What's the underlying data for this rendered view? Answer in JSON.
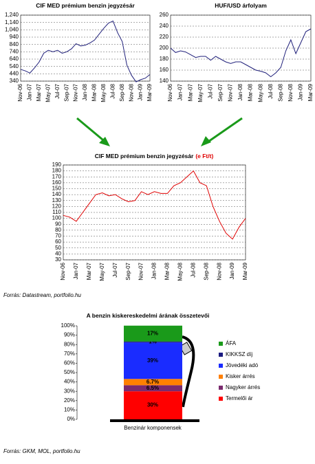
{
  "chart_data": [
    {
      "type": "line",
      "title": "CIF MED prémium benzin jegyzésár",
      "categories": [
        "Nov-06",
        null,
        "Jan-07",
        null,
        "Mar-07",
        null,
        "May-07",
        null,
        "Jul-07",
        null,
        "Sep-07",
        null,
        "Nov-07",
        null,
        "Jan-08",
        null,
        "Mar-08",
        null,
        "May-08",
        null,
        "Jul-08",
        null,
        "Sep-08",
        null,
        "Nov-08",
        null,
        "Jan-09",
        null,
        "Mar-09"
      ],
      "series": [
        {
          "color": "#1f1f7a",
          "values": [
            500,
            480,
            450,
            520,
            600,
            720,
            760,
            740,
            760,
            720,
            740,
            780,
            850,
            820,
            830,
            860,
            900,
            980,
            1060,
            1130,
            1160,
            1000,
            880,
            560,
            420,
            330,
            360,
            380,
            430
          ]
        }
      ],
      "ylim": [
        340,
        1240
      ],
      "yticks": [
        340,
        440,
        540,
        640,
        740,
        840,
        940,
        {
          "value": 1040,
          "label": "1,040"
        },
        {
          "value": 1140,
          "label": "1,140"
        },
        {
          "value": 1240,
          "label": "1,240"
        }
      ],
      "grid": true
    },
    {
      "type": "line",
      "title": "HUF/USD árfolyam",
      "categories": [
        "Nov-06",
        null,
        "Jan-07",
        null,
        "Mar-07",
        null,
        "May-07",
        null,
        "Jul-07",
        null,
        "Sep-07",
        null,
        "Nov-07",
        null,
        "Jan-08",
        null,
        "Mar-08",
        null,
        "May-08",
        null,
        "Jul-08",
        null,
        "Sep-08",
        null,
        "Nov-08",
        null,
        "Jan-09",
        null,
        "Mar-09"
      ],
      "series": [
        {
          "color": "#1f1f7a",
          "values": [
            200,
            192,
            195,
            193,
            188,
            183,
            185,
            185,
            178,
            185,
            180,
            175,
            172,
            175,
            175,
            170,
            165,
            160,
            158,
            155,
            148,
            155,
            165,
            195,
            215,
            190,
            210,
            230,
            235
          ]
        }
      ],
      "ylim": [
        140,
        260
      ],
      "yticks": [
        140,
        160,
        180,
        200,
        220,
        240,
        260
      ],
      "grid": true
    },
    {
      "type": "line",
      "title": "CIF MED prémium benzin jegyzésár",
      "title_unit": "(e Ft/t)",
      "categories": [
        "Nov-06",
        null,
        "Jan-07",
        null,
        "Mar-07",
        null,
        "May-07",
        null,
        "Jul-07",
        null,
        "Sep-07",
        null,
        "Nov-07",
        null,
        "Jan-08",
        null,
        "Mar-08",
        null,
        "May-08",
        null,
        "Jul-08",
        null,
        "Sep-08",
        null,
        "Nov-08",
        null,
        "Jan-09",
        null,
        "Mar-09"
      ],
      "series": [
        {
          "color": "#e00000",
          "values": [
            105,
            102,
            95,
            110,
            125,
            140,
            143,
            138,
            140,
            133,
            128,
            130,
            145,
            140,
            145,
            142,
            142,
            155,
            160,
            170,
            180,
            160,
            155,
            120,
            95,
            75,
            65,
            85,
            100
          ]
        }
      ],
      "ylim": [
        30,
        190
      ],
      "yticks": [
        30,
        40,
        50,
        60,
        70,
        80,
        90,
        100,
        110,
        120,
        130,
        140,
        150,
        160,
        170,
        180,
        190
      ],
      "grid": true
    },
    {
      "type": "stacked-bar",
      "title": "A benzin kiskereskedelmi árának összetevői",
      "categories": [
        "Benzinár komponensek"
      ],
      "series": [
        {
          "name": "Termelői ár",
          "color": "#ff0000",
          "values": [
            30
          ],
          "value_labels": [
            "30%"
          ]
        },
        {
          "name": "Nagyker árrés",
          "color": "#7a2a6e",
          "values": [
            6.5
          ],
          "value_labels": [
            "6.5%"
          ]
        },
        {
          "name": "Kisker árrés",
          "color": "#ff8000",
          "values": [
            6.7
          ],
          "value_labels": [
            "6.7%"
          ]
        },
        {
          "name": "Jövedéki adó",
          "color": "#1a2cff",
          "values": [
            39
          ],
          "value_labels": [
            "39%"
          ]
        },
        {
          "name": "KIKKSZ díj",
          "color": "#1a1a80",
          "values": [
            1
          ],
          "value_labels": [
            "1%"
          ]
        },
        {
          "name": "ÁFA",
          "color": "#1a9a1a",
          "values": [
            17
          ],
          "value_labels": [
            "17%"
          ]
        }
      ],
      "ylim": [
        0,
        100
      ],
      "yticks": [
        {
          "value": 0,
          "label": "0%"
        },
        {
          "value": 10,
          "label": "10%"
        },
        {
          "value": 20,
          "label": "20%"
        },
        {
          "value": 30,
          "label": "30%"
        },
        {
          "value": 40,
          "label": "40%"
        },
        {
          "value": 50,
          "label": "50%"
        },
        {
          "value": 60,
          "label": "60%"
        },
        {
          "value": 70,
          "label": "70%"
        },
        {
          "value": 80,
          "label": "80%"
        },
        {
          "value": 90,
          "label": "90%"
        },
        {
          "value": 100,
          "label": "100%"
        }
      ],
      "legend": "right"
    }
  ],
  "sources": [
    "Forrás: Datastream, portfolio.hu",
    "Forrás: GKM, MOL, portfolio.hu"
  ]
}
